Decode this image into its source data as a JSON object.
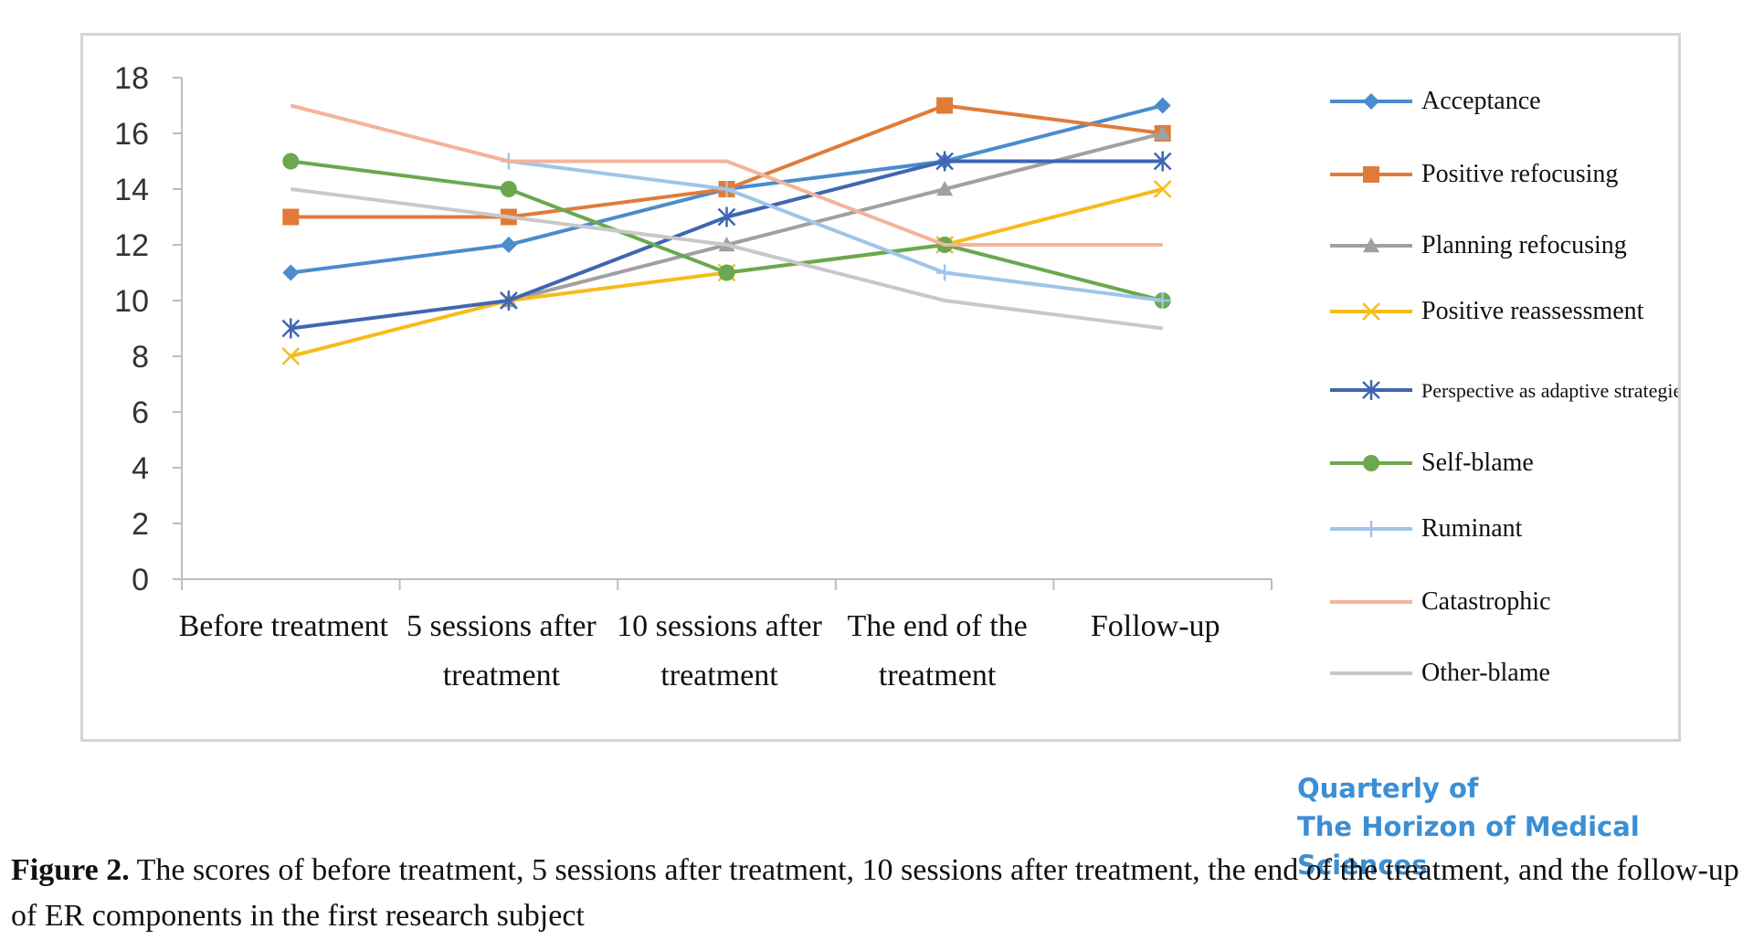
{
  "chart_data": {
    "type": "line",
    "categories": [
      [
        "Before treatment"
      ],
      [
        "5 sessions after",
        "treatment"
      ],
      [
        "10 sessions after",
        "treatment"
      ],
      [
        "The end of the",
        "treatment"
      ],
      [
        "Follow-up"
      ]
    ],
    "ylim": [
      0,
      18
    ],
    "yticks": [
      "0",
      "2",
      "4",
      "6",
      "8",
      "10",
      "12",
      "14",
      "16",
      "18"
    ],
    "grid": false,
    "legend_position": "right",
    "series": [
      {
        "name": "Acceptance",
        "color": "#4a8ccc",
        "marker": "diamond",
        "values": [
          11,
          12,
          14,
          15,
          17
        ]
      },
      {
        "name": "Positive refocusing",
        "color": "#e07b39",
        "marker": "square",
        "values": [
          13,
          13,
          14,
          17,
          16
        ]
      },
      {
        "name": "Planning refocusing",
        "color": "#a0a0a0",
        "marker": "triangle",
        "values": [
          null,
          10,
          12,
          14,
          16
        ]
      },
      {
        "name": "Positive reassessment",
        "color": "#f5bc1a",
        "marker": "x",
        "values": [
          8,
          10,
          11,
          12,
          14
        ]
      },
      {
        "name": "Perspective as adaptive strategies",
        "color": "#3f66b0",
        "marker": "star",
        "values": [
          9,
          10,
          13,
          15,
          15
        ]
      },
      {
        "name": "Self-blame",
        "color": "#6aa84f",
        "marker": "circle",
        "values": [
          15,
          14,
          11,
          12,
          10
        ]
      },
      {
        "name": "Ruminant",
        "color": "#9fc5e8",
        "marker": "plus",
        "values": [
          null,
          15,
          14,
          11,
          10
        ]
      },
      {
        "name": "Catastrophic",
        "color": "#f4b39a",
        "marker": "none",
        "values": [
          17,
          15,
          15,
          12,
          12
        ]
      },
      {
        "name": "Other-blame",
        "color": "#c8c8c8",
        "marker": "none",
        "values": [
          14,
          13,
          12,
          10,
          9
        ]
      }
    ]
  },
  "journal": {
    "line1": "Quarterly of",
    "line2": "The Horizon of Medical Sciences"
  },
  "caption": {
    "label": "Figure 2.",
    "text": " The scores of before treatment, 5 sessions after treatment, 10 sessions after treatment, the end of the treatment, and the follow-up of ER components in the first research subject"
  }
}
